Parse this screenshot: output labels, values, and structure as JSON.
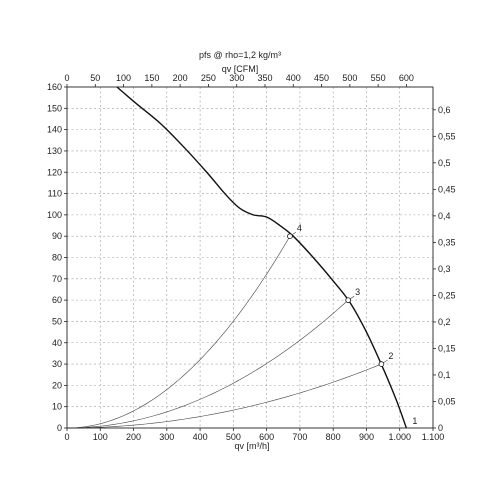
{
  "chart_data": {
    "type": "line",
    "title": "pfs @ rho=1,2 kg/m³",
    "xlabel": "qv [m³/h]",
    "x2label": "qv [CFM]",
    "ylabel": "",
    "xlim": [
      0,
      1100
    ],
    "ylim": [
      0,
      160
    ],
    "x2lim": [
      0,
      647
    ],
    "y2lim": [
      0,
      0.643
    ],
    "x_ticks": [
      "0",
      "100",
      "200",
      "300",
      "400",
      "500",
      "600",
      "700",
      "800",
      "900",
      "1.000",
      "1.100"
    ],
    "y_ticks": [
      "0",
      "10",
      "20",
      "30",
      "40",
      "50",
      "60",
      "70",
      "80",
      "90",
      "100",
      "110",
      "120",
      "130",
      "140",
      "150",
      "160"
    ],
    "x2_ticks": [
      "0",
      "50",
      "100",
      "150",
      "200",
      "250",
      "300",
      "350",
      "400",
      "450",
      "500",
      "550",
      "600"
    ],
    "y2_ticks": [
      "0",
      "0,05",
      "0,1",
      "0,15",
      "0,2",
      "0,25",
      "0,3",
      "0,35",
      "0,4",
      "0,45",
      "0,5",
      "0,55",
      "0,6"
    ],
    "grid": true,
    "series": [
      {
        "role": "fan-curve",
        "points": [
          [
            150,
            160
          ],
          [
            210,
            152
          ],
          [
            280,
            143
          ],
          [
            350,
            132
          ],
          [
            420,
            120
          ],
          [
            480,
            109
          ],
          [
            520,
            103
          ],
          [
            560,
            100
          ],
          [
            600,
            99
          ],
          [
            640,
            95
          ],
          [
            680,
            90
          ],
          [
            740,
            80
          ],
          [
            800,
            69
          ],
          [
            850,
            59
          ],
          [
            900,
            45
          ],
          [
            950,
            28
          ],
          [
            990,
            13
          ],
          [
            1020,
            0
          ]
        ]
      }
    ],
    "system_curves": [
      {
        "label": "2",
        "end": [
          945,
          30
        ]
      },
      {
        "label": "3",
        "end": [
          845,
          60
        ]
      },
      {
        "label": "4",
        "end": [
          670,
          90
        ]
      }
    ],
    "operating_points": [
      {
        "label": "1",
        "x": 1020,
        "y": 0
      },
      {
        "label": "2",
        "x": 945,
        "y": 30
      },
      {
        "label": "3",
        "x": 845,
        "y": 60
      },
      {
        "label": "4",
        "x": 670,
        "y": 90
      }
    ]
  }
}
